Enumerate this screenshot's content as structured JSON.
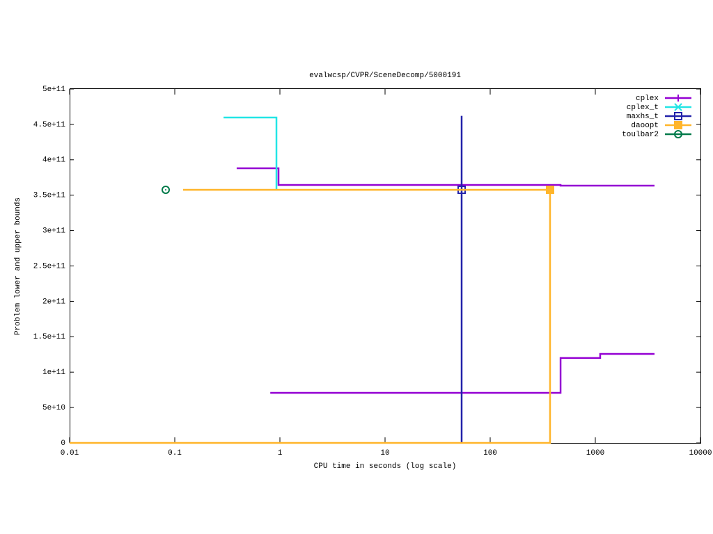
{
  "chart_data": {
    "type": "step",
    "title": "evalwcsp/CVPR/SceneDecomp/5000191",
    "x_label": "CPU time in seconds (log scale)",
    "y_label": "Problem lower and upper bounds",
    "xlog": true,
    "xlim": [
      0.01,
      10000
    ],
    "xticks": [
      0.01,
      0.1,
      1,
      10,
      100,
      1000,
      10000
    ],
    "ylim": [
      0,
      500000000000
    ],
    "yticks": [
      0,
      {
        "value": 50000000000,
        "label": "5e+10"
      },
      {
        "value": 100000000000,
        "label": "1e+11"
      },
      {
        "value": 150000000000,
        "label": "1.5e+11"
      },
      {
        "value": 200000000000,
        "label": "2e+11"
      },
      {
        "value": 250000000000,
        "label": "2.5e+11"
      },
      {
        "value": 300000000000,
        "label": "3e+11"
      },
      {
        "value": 350000000000,
        "label": "3.5e+11"
      },
      {
        "value": 400000000000,
        "label": "4e+11"
      },
      {
        "value": 450000000000,
        "label": "4.5e+11"
      },
      {
        "value": 500000000000,
        "label": "5e+11"
      }
    ],
    "legend": "top-right",
    "series": [
      {
        "name": "cplex",
        "color": "#9400d3",
        "point": "plus",
        "upper": {
          "x": [
            0.388,
            0.97,
            467,
            3656
          ],
          "values": [
            388000000000,
            364500000000,
            363500000000,
            363500000000
          ]
        },
        "lower": {
          "x": [
            0.81,
            467,
            1112,
            3656
          ],
          "values": [
            70700000000,
            120000000000,
            125700000000,
            125700000000
          ]
        }
      },
      {
        "name": "cplex_t",
        "color": "#22e5e5",
        "point": "cross",
        "upper": {
          "x": [
            0.291,
            0.927
          ],
          "values": [
            459700000000,
            358500000000
          ]
        }
      },
      {
        "name": "maxhs_t",
        "color": "#2222aa",
        "point": "open-square",
        "upper": {
          "x": [
            53.5,
            53.5
          ],
          "values": [
            462000000000,
            0
          ]
        },
        "points": {
          "x": [
            53.5
          ],
          "values": [
            357600000000
          ]
        }
      },
      {
        "name": "daoopt",
        "color": "#ffb52a",
        "point": "filled-square",
        "upper": {
          "x": [
            0.12,
            371
          ],
          "values": [
            357600000000,
            357600000000
          ]
        },
        "lower": {
          "x": [
            0.01,
            371
          ],
          "values": [
            0,
            357600000000
          ]
        },
        "points": {
          "x": [
            371
          ],
          "values": [
            357600000000
          ]
        }
      },
      {
        "name": "toulbar2",
        "color": "#007a4a",
        "point": "circle",
        "points": {
          "x": [
            0.082
          ],
          "values": [
            357600000000
          ]
        }
      }
    ]
  }
}
